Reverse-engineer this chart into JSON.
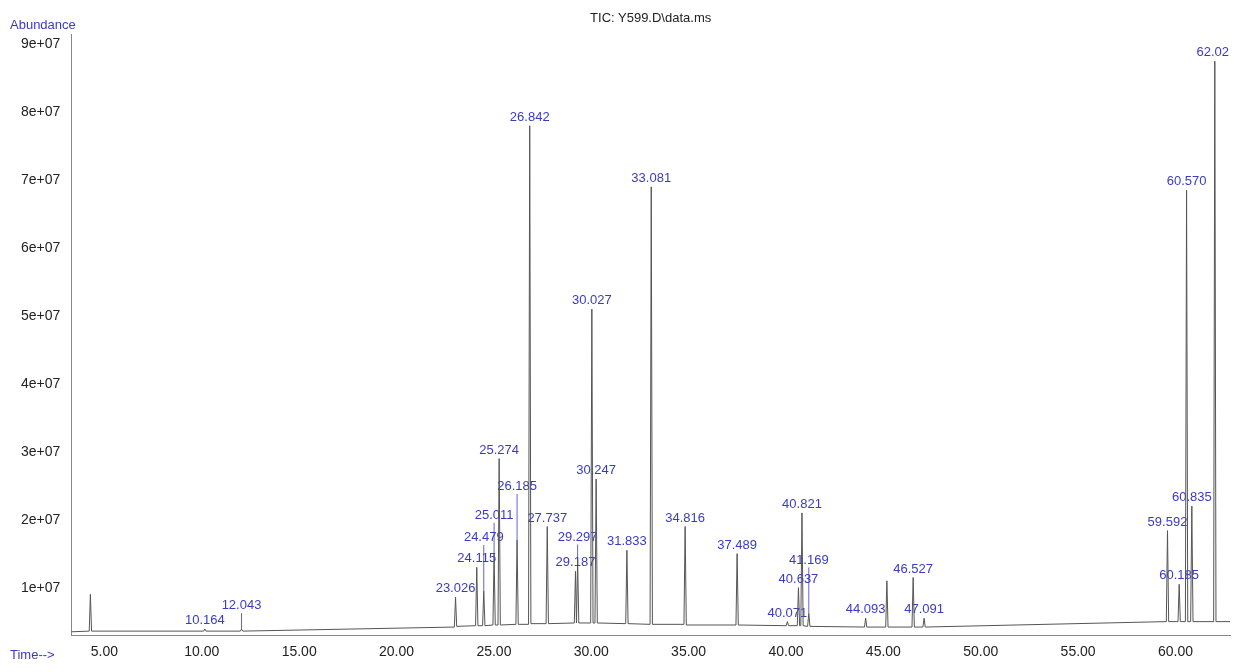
{
  "chart_data": {
    "type": "line",
    "title": "TIC: Y599.D\\data.ms",
    "xlabel": "Time-->",
    "ylabel": "Abundance",
    "color": "#555555",
    "x": [
      3.3,
      4.22,
      4.28,
      4.34,
      10.1,
      10.16,
      10.22,
      11.98,
      12.04,
      12.1,
      22.97,
      23.03,
      23.09,
      24.06,
      24.12,
      24.18,
      24.42,
      24.48,
      24.54,
      24.95,
      25.01,
      25.07,
      25.21,
      25.27,
      25.33,
      26.13,
      26.19,
      26.25,
      26.78,
      26.84,
      26.9,
      27.68,
      27.74,
      27.8,
      29.13,
      29.19,
      29.24,
      29.3,
      29.36,
      29.97,
      30.03,
      30.09,
      30.19,
      30.25,
      30.31,
      31.77,
      31.83,
      31.89,
      33.02,
      33.08,
      33.14,
      34.76,
      34.82,
      34.88,
      37.43,
      37.49,
      37.55,
      40.01,
      40.07,
      40.13,
      40.58,
      40.64,
      40.7,
      40.76,
      40.82,
      40.88,
      41.11,
      41.17,
      41.23,
      44.03,
      44.09,
      44.15,
      45.12,
      45.18,
      45.24,
      46.47,
      46.53,
      46.59,
      47.03,
      47.09,
      47.15,
      59.53,
      59.59,
      59.65,
      60.13,
      60.19,
      60.25,
      60.51,
      60.57,
      60.63,
      60.78,
      60.84,
      60.9,
      61.96,
      62.02,
      62.08,
      62.8
    ],
    "values": [
      3500000,
      3600000,
      9000000,
      3600000,
      3600000,
      3900000,
      3600000,
      3600000,
      3900000,
      3600000,
      4200000,
      8600000,
      4300000,
      4400000,
      13000000,
      4400000,
      4400000,
      9500000,
      4400000,
      4500000,
      15000000,
      4500000,
      4500000,
      29000000,
      4500000,
      4600000,
      17000000,
      4600000,
      4600000,
      78000000,
      4700000,
      4700000,
      19000000,
      4700000,
      4800000,
      12400000,
      4800000,
      14000000,
      4800000,
      4800000,
      51000000,
      4800000,
      4800000,
      26000000,
      4800000,
      4700000,
      15500000,
      4700000,
      4600000,
      69000000,
      4600000,
      4600000,
      19000000,
      4500000,
      4500000,
      15000000,
      4500000,
      4400000,
      5000000,
      4400000,
      4400000,
      10000000,
      4400000,
      4400000,
      21000000,
      4400000,
      4300000,
      6200000,
      4300000,
      4200000,
      5500000,
      4200000,
      4200000,
      11000000,
      4200000,
      4200000,
      11500000,
      4200000,
      4200000,
      5500000,
      4200000,
      5000000,
      18400000,
      5000000,
      5000000,
      10500000,
      5000000,
      5000000,
      68500000,
      5000000,
      5000000,
      22000000,
      5000000,
      5000000,
      87500000,
      5000000,
      5000000
    ],
    "xlim": [
      3.3,
      62.8
    ],
    "ylim": [
      3000000,
      91500000
    ],
    "xticks": [
      {
        "value": 5,
        "label": "5.00"
      },
      {
        "value": 10,
        "label": "10.00"
      },
      {
        "value": 15,
        "label": "15.00"
      },
      {
        "value": 20,
        "label": "20.00"
      },
      {
        "value": 25,
        "label": "25.00"
      },
      {
        "value": 30,
        "label": "30.00"
      },
      {
        "value": 35,
        "label": "35.00"
      },
      {
        "value": 40,
        "label": "40.00"
      },
      {
        "value": 45,
        "label": "45.00"
      },
      {
        "value": 50,
        "label": "50.00"
      },
      {
        "value": 55,
        "label": "55.00"
      },
      {
        "value": 60,
        "label": "60.00"
      }
    ],
    "yticks": [
      {
        "value": 10000000,
        "label": "1e+07"
      },
      {
        "value": 20000000,
        "label": "2e+07"
      },
      {
        "value": 30000000,
        "label": "3e+07"
      },
      {
        "value": 40000000,
        "label": "4e+07"
      },
      {
        "value": 50000000,
        "label": "5e+07"
      },
      {
        "value": 60000000,
        "label": "6e+07"
      },
      {
        "value": 70000000,
        "label": "7e+07"
      },
      {
        "value": 80000000,
        "label": "8e+07"
      },
      {
        "value": 90000000,
        "label": "9e+07"
      }
    ],
    "annotations": [
      {
        "text": "10.164",
        "x": 10.16,
        "y": 3900000
      },
      {
        "text": "12.043",
        "x": 12.04,
        "y": 3900000
      },
      {
        "text": "23.026",
        "x": 23.03,
        "y": 8600000
      },
      {
        "text": "24.115",
        "x": 24.12,
        "y": 13000000
      },
      {
        "text": "24.479",
        "x": 24.48,
        "y": 9500000
      },
      {
        "text": "25.011",
        "x": 25.01,
        "y": 15000000
      },
      {
        "text": "25.274",
        "x": 25.27,
        "y": 29000000
      },
      {
        "text": "26.185",
        "x": 26.19,
        "y": 17000000
      },
      {
        "text": "26.842",
        "x": 26.84,
        "y": 78000000
      },
      {
        "text": "27.737",
        "x": 27.74,
        "y": 19000000
      },
      {
        "text": "29.187",
        "x": 29.19,
        "y": 12400000
      },
      {
        "text": "29.297",
        "x": 29.3,
        "y": 14000000
      },
      {
        "text": "30.027",
        "x": 30.03,
        "y": 51000000
      },
      {
        "text": "30.247",
        "x": 30.25,
        "y": 26000000
      },
      {
        "text": "31.833",
        "x": 31.83,
        "y": 15500000
      },
      {
        "text": "33.081",
        "x": 33.08,
        "y": 69000000
      },
      {
        "text": "34.816",
        "x": 34.82,
        "y": 19000000
      },
      {
        "text": "37.489",
        "x": 37.49,
        "y": 15000000
      },
      {
        "text": "40.071",
        "x": 40.07,
        "y": 5000000
      },
      {
        "text": "40.637",
        "x": 40.64,
        "y": 10000000
      },
      {
        "text": "40.821",
        "x": 40.82,
        "y": 21000000
      },
      {
        "text": "41.169",
        "x": 41.17,
        "y": 6200000
      },
      {
        "text": "44.093",
        "x": 44.09,
        "y": 5500000
      },
      {
        "text": "46.527",
        "x": 46.53,
        "y": 11500000
      },
      {
        "text": "47.091",
        "x": 47.09,
        "y": 5500000
      },
      {
        "text": "59.592",
        "x": 59.59,
        "y": 18400000
      },
      {
        "text": "60.185",
        "x": 60.19,
        "y": 10500000
      },
      {
        "text": "60.570",
        "x": 60.57,
        "y": 68500000
      },
      {
        "text": "60.835",
        "x": 60.84,
        "y": 22000000
      },
      {
        "text": "62.02",
        "x": 62.02,
        "y": 87500000
      }
    ]
  }
}
